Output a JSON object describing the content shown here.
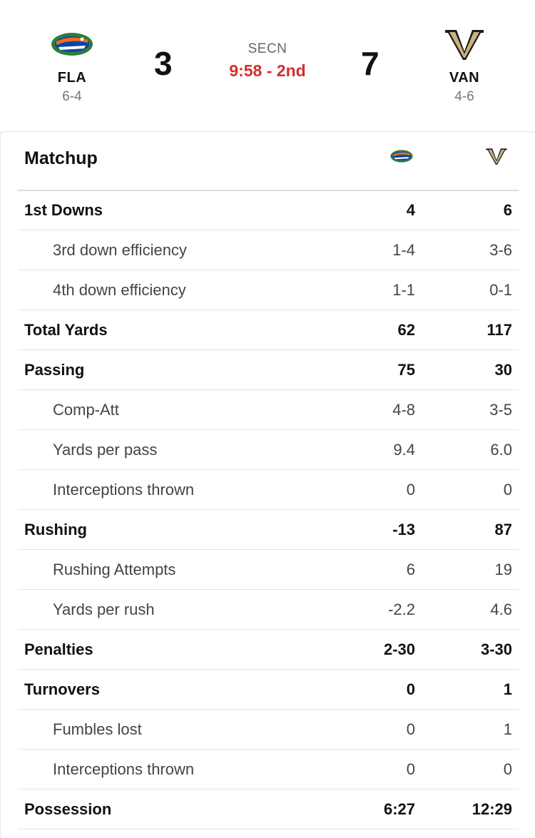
{
  "header": {
    "home": {
      "abbr": "FLA",
      "record": "6-4",
      "score": "3",
      "logo": "gator-logo-icon"
    },
    "away": {
      "abbr": "VAN",
      "record": "4-6",
      "score": "7",
      "logo": "vanderbilt-v-logo-icon"
    },
    "network": "SECN",
    "clock": "9:58 - 2nd",
    "colors": {
      "clock": "#d0312d",
      "gator_blue": "#0b45a3",
      "gator_green": "#2f7d3a",
      "gator_orange": "#f26a21",
      "vandy_gold": "#c9b27f"
    }
  },
  "matchup": {
    "title": "Matchup",
    "rows": [
      {
        "label": "1st Downs",
        "home": "4",
        "away": "6",
        "type": "main"
      },
      {
        "label": "3rd down efficiency",
        "home": "1-4",
        "away": "3-6",
        "type": "sub"
      },
      {
        "label": "4th down efficiency",
        "home": "1-1",
        "away": "0-1",
        "type": "sub"
      },
      {
        "label": "Total Yards",
        "home": "62",
        "away": "117",
        "type": "main"
      },
      {
        "label": "Passing",
        "home": "75",
        "away": "30",
        "type": "main"
      },
      {
        "label": "Comp-Att",
        "home": "4-8",
        "away": "3-5",
        "type": "sub"
      },
      {
        "label": "Yards per pass",
        "home": "9.4",
        "away": "6.0",
        "type": "sub"
      },
      {
        "label": "Interceptions thrown",
        "home": "0",
        "away": "0",
        "type": "sub"
      },
      {
        "label": "Rushing",
        "home": "-13",
        "away": "87",
        "type": "main"
      },
      {
        "label": "Rushing Attempts",
        "home": "6",
        "away": "19",
        "type": "sub"
      },
      {
        "label": "Yards per rush",
        "home": "-2.2",
        "away": "4.6",
        "type": "sub"
      },
      {
        "label": "Penalties",
        "home": "2-30",
        "away": "3-30",
        "type": "main"
      },
      {
        "label": "Turnovers",
        "home": "0",
        "away": "1",
        "type": "main"
      },
      {
        "label": "Fumbles lost",
        "home": "0",
        "away": "1",
        "type": "sub"
      },
      {
        "label": "Interceptions thrown",
        "home": "0",
        "away": "0",
        "type": "sub"
      },
      {
        "label": "Possession",
        "home": "6:27",
        "away": "12:29",
        "type": "main"
      }
    ]
  }
}
